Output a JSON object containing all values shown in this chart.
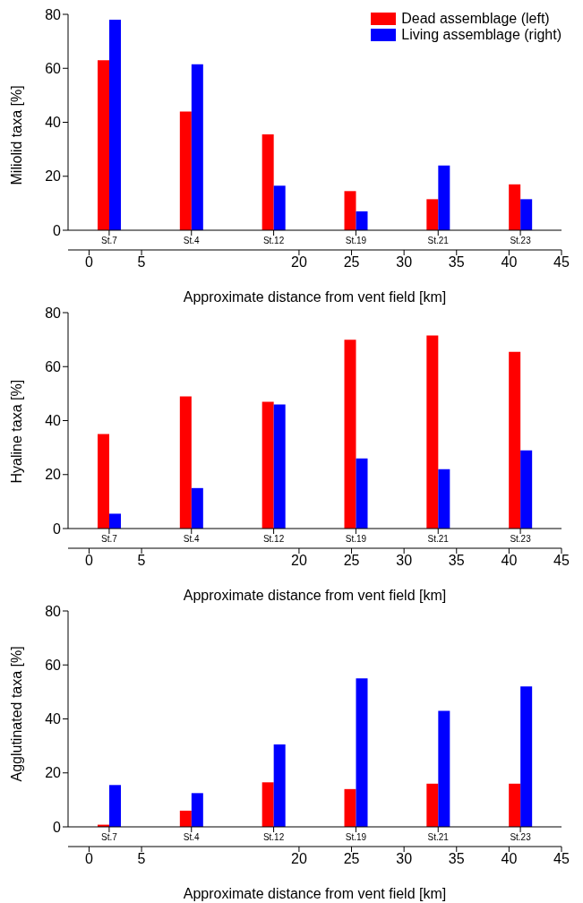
{
  "chart_data": [
    {
      "type": "bar",
      "ylabel": "Miliolid taxa [%]",
      "xlabel": "Approximate distance from vent field [km]",
      "categories": [
        "St.7",
        "St.4",
        "St.12",
        "St.19",
        "St.21",
        "St.23"
      ],
      "ylim": [
        0,
        80
      ],
      "yticks": [
        0,
        20,
        40,
        60,
        80
      ],
      "x2lim": [
        -2,
        45
      ],
      "x2ticks": [
        0,
        5,
        20,
        25,
        30,
        35,
        40,
        45
      ],
      "legend": "top right",
      "series": [
        {
          "name": "Dead assemblage (left)",
          "color": "#ff0000",
          "values": [
            63,
            44,
            35.5,
            14.5,
            11.5,
            17
          ]
        },
        {
          "name": "Living assemblage (right)",
          "color": "#0000ff",
          "values": [
            78,
            61.5,
            16.5,
            7,
            24,
            11.5
          ]
        }
      ]
    },
    {
      "type": "bar",
      "ylabel": "Hyaline taxa [%]",
      "xlabel": "Approximate distance from vent field [km]",
      "categories": [
        "St.7",
        "St.4",
        "St.12",
        "St.19",
        "St.21",
        "St.23"
      ],
      "ylim": [
        0,
        80
      ],
      "yticks": [
        0,
        20,
        40,
        60,
        80
      ],
      "x2lim": [
        -2,
        45
      ],
      "x2ticks": [
        0,
        5,
        20,
        25,
        30,
        35,
        40,
        45
      ],
      "series": [
        {
          "color": "#ff0000",
          "values": [
            35,
            49,
            47,
            70,
            71.5,
            65.5
          ]
        },
        {
          "color": "#0000ff",
          "values": [
            5.5,
            15,
            46,
            26,
            22,
            29
          ]
        }
      ]
    },
    {
      "type": "bar",
      "ylabel": "Agglutinated taxa [%]",
      "xlabel": "Approximate distance from vent field [km]",
      "categories": [
        "St.7",
        "St.4",
        "St.12",
        "St.19",
        "St.21",
        "St.23"
      ],
      "ylim": [
        0,
        80
      ],
      "yticks": [
        0,
        20,
        40,
        60,
        80
      ],
      "x2lim": [
        -2,
        45
      ],
      "x2ticks": [
        0,
        5,
        20,
        25,
        30,
        35,
        40,
        45
      ],
      "series": [
        {
          "color": "#ff0000",
          "values": [
            0.8,
            6,
            16.5,
            14,
            16,
            16
          ]
        },
        {
          "color": "#0000ff",
          "values": [
            15.5,
            12.5,
            30.5,
            55,
            43,
            52
          ]
        }
      ]
    }
  ]
}
